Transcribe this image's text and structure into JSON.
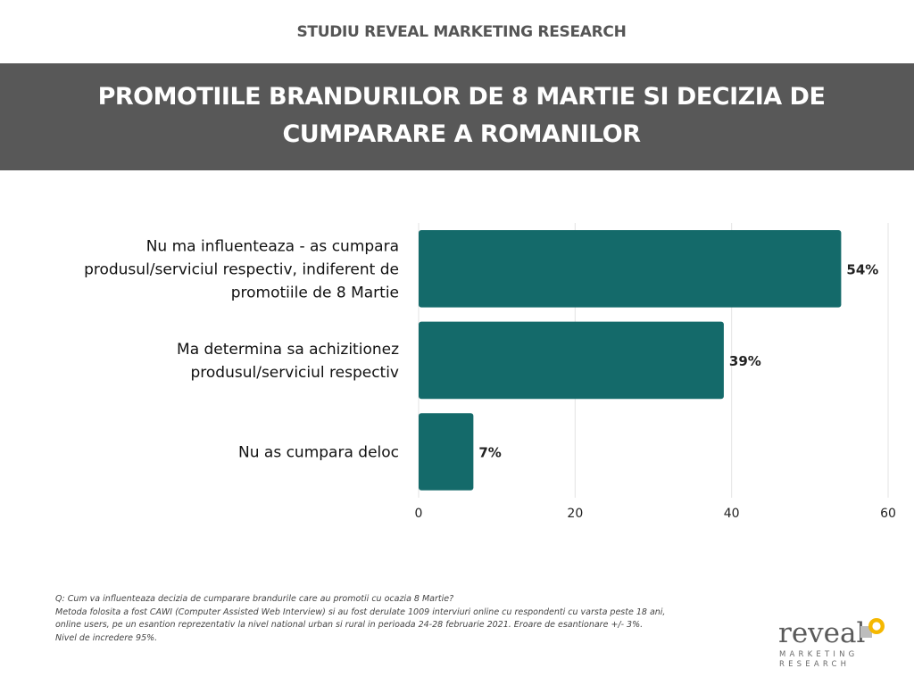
{
  "header": {
    "study_label": "STUDIU REVEAL MARKETING RESEARCH",
    "title_line1": "PROMOTIILE BRANDURILOR DE 8 MARTIE SI DECIZIA DE",
    "title_line2": "CUMPARARE A ROMANILOR"
  },
  "colors": {
    "bar": "#146A6A",
    "banner": "#585858",
    "gridline": "#e3e3e3"
  },
  "chart_data": {
    "type": "bar",
    "orientation": "horizontal",
    "categories": [
      [
        "Nu ma influenteaza - as cumpara",
        "produsul/serviciul respectiv, indiferent de",
        "promotiile de 8 Martie"
      ],
      [
        "Ma determina sa achizitionez",
        "produsul/serviciul respectiv"
      ],
      [
        "Nu as cumpara deloc"
      ]
    ],
    "values": [
      54,
      39,
      7
    ],
    "value_labels": [
      "54%",
      "39%",
      "7%"
    ],
    "xlim": [
      0,
      60
    ],
    "xticks": [
      0,
      20,
      40,
      60
    ],
    "grid": true,
    "legend": "none"
  },
  "footnote": {
    "lines": [
      "Q: Cum va influenteaza decizia de cumparare brandurile care au promotii cu ocazia 8 Martie?",
      "Metoda folosita a fost CAWI (Computer Assisted Web Interview) si au fost derulate 1009 interviuri online cu respondenti cu varsta peste 18 ani,",
      "online users, pe un esantion reprezentativ la nivel national urban si rural in perioada 24-28 februarie 2021. Eroare de esantionare +/- 3%.",
      "Nivel de incredere 95%."
    ]
  },
  "logo": {
    "word": "reveal",
    "line1": "MARKETING",
    "line2": "RESEARCH",
    "mark_colors": [
      "#F5B800",
      "#bdbdbd"
    ]
  }
}
